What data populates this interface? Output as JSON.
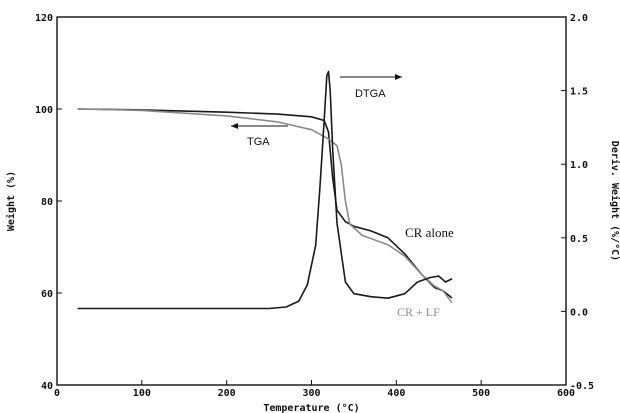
{
  "chart_data": {
    "type": "line",
    "x_axis": {
      "label": "Temperature (°C)",
      "range": [
        0,
        600
      ],
      "ticks": [
        0,
        100,
        200,
        300,
        400,
        500,
        600
      ]
    },
    "y_axis_left": {
      "label": "Weight (%)",
      "range": [
        40,
        120
      ],
      "ticks": [
        40,
        60,
        80,
        100,
        120
      ]
    },
    "y_axis_right": {
      "label": "Deriv. Weight (%/°C)",
      "range": [
        -0.5,
        2.0
      ],
      "ticks": [
        "-0.5",
        "0.0",
        "0.5",
        "1.0",
        "1.5",
        "2.0"
      ]
    },
    "annotations": {
      "tga": "TGA",
      "dtga": "DTGA",
      "cr_alone": "CR alone",
      "cr_lf": "CR + LF"
    },
    "series": [
      {
        "name": "CR alone",
        "axis": "left",
        "color": "#1a1a1a",
        "x": [
          25,
          100,
          200,
          260,
          300,
          315,
          320,
          325,
          330,
          340,
          350,
          370,
          390,
          410,
          430,
          445,
          455,
          465
        ],
        "y": [
          100,
          99.8,
          99.3,
          98.9,
          98.3,
          97.5,
          95,
          85,
          78,
          75.5,
          74.5,
          73.5,
          72,
          68.5,
          64,
          61.2,
          60.5,
          59
        ]
      },
      {
        "name": "CR + LF",
        "axis": "left",
        "color": "#8a8a8a",
        "x": [
          25,
          100,
          200,
          260,
          300,
          320,
          330,
          335,
          340,
          345,
          360,
          390,
          410,
          430,
          445,
          455,
          465
        ],
        "y": [
          100,
          99.7,
          98.5,
          97.2,
          95.5,
          93.5,
          92,
          88,
          80,
          75,
          72.5,
          70.5,
          68,
          64,
          61.5,
          60.5,
          58
        ]
      },
      {
        "name": "DTGA",
        "axis": "right",
        "color": "#1a1a1a",
        "x": [
          25,
          100,
          200,
          250,
          270,
          285,
          295,
          305,
          310,
          315,
          318,
          320,
          322,
          325,
          330,
          340,
          350,
          370,
          390,
          410,
          425,
          440,
          450,
          458,
          465
        ],
        "y": [
          0.02,
          0.02,
          0.02,
          0.02,
          0.03,
          0.07,
          0.18,
          0.45,
          0.85,
          1.3,
          1.6,
          1.63,
          1.5,
          1.1,
          0.6,
          0.2,
          0.12,
          0.1,
          0.09,
          0.12,
          0.2,
          0.23,
          0.24,
          0.2,
          0.22
        ]
      }
    ]
  }
}
